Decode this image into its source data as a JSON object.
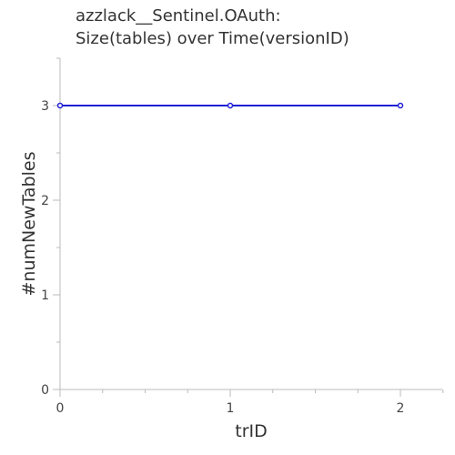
{
  "chart_data": {
    "type": "line",
    "title_lines": [
      "azzlack__Sentinel.OAuth:",
      "Size(tables) over Time(versionID)"
    ],
    "xlabel": "trID",
    "ylabel": "#numNewTables",
    "x": [
      0,
      1,
      2
    ],
    "xlim": [
      0,
      2.25
    ],
    "ylim": [
      0,
      3.1
    ],
    "x_ticks": [
      0,
      1,
      2
    ],
    "y_ticks": [
      0,
      1,
      2,
      3
    ],
    "grid": false,
    "series": [
      {
        "values": [
          3,
          3,
          3
        ],
        "color": "#1f1fd6"
      }
    ]
  }
}
